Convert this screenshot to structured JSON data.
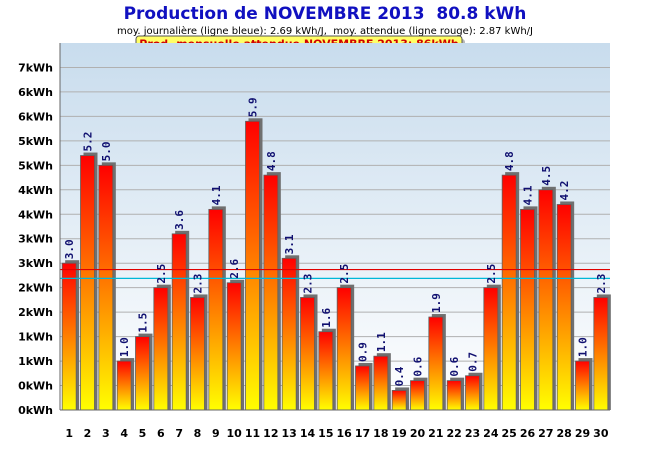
{
  "chart_data": {
    "type": "bar",
    "title": "Production de NOVEMBRE 2013  80.8 kWh",
    "subtitle": "moy. journalière (ligne bleue): 2.69 kWh/J,  moy. attendue (ligne rouge): 2.87 kWh/J",
    "banner": "Prod. mensuelle attendue NOVEMBRE 2013: 86kWh",
    "categories": [
      "1",
      "2",
      "3",
      "4",
      "5",
      "6",
      "7",
      "8",
      "9",
      "10",
      "11",
      "12",
      "13",
      "14",
      "15",
      "16",
      "17",
      "18",
      "19",
      "20",
      "21",
      "22",
      "23",
      "24",
      "25",
      "26",
      "27",
      "28",
      "29",
      "30"
    ],
    "values": [
      3.0,
      5.2,
      5.0,
      1.0,
      1.5,
      2.5,
      3.6,
      2.3,
      4.1,
      2.6,
      5.9,
      4.8,
      3.1,
      2.3,
      1.6,
      2.5,
      0.9,
      1.1,
      0.4,
      0.6,
      1.9,
      0.6,
      0.7,
      2.5,
      4.8,
      4.1,
      4.5,
      4.2,
      1.0,
      2.3
    ],
    "value_labels": [
      "3.0",
      "5.2",
      "5.0",
      "1.0",
      "1.5",
      "2.5",
      "3.6",
      "2.3",
      "4.1",
      "2.6",
      "5.9",
      "4.8",
      "3.1",
      "2.3",
      "1.6",
      "2.5",
      "0.9",
      "1.1",
      "0.4",
      "0.6",
      "1.9",
      "0.6",
      "0.7",
      "2.5",
      "4.8",
      "4.1",
      "4.5",
      "4.2",
      "1.0",
      "2.3"
    ],
    "ytick_labels": [
      "0kWh",
      "0kWh",
      "1kWh",
      "1kWh",
      "2kWh",
      "2kWh",
      "3kWh",
      "3kWh",
      "4kWh",
      "4kWh",
      "5kWh",
      "5kWh",
      "6kWh",
      "6kWh",
      "7kWh"
    ],
    "ylim": [
      0,
      7.5
    ],
    "ytick_step": 0.5,
    "avg_daily": 2.69,
    "avg_expected": 2.87,
    "xlabel": "",
    "ylabel": "",
    "grid": true,
    "colors": {
      "title": "#1010c0",
      "bar_top": "#ff0000",
      "bar_bottom": "#ffff00",
      "avg_line": "#00b8d8",
      "expected_line": "#e00000",
      "banner_fill": "#ffff66",
      "banner_text": "#d00000",
      "plot_bg_top": "#c8dced",
      "plot_bg_bottom": "#ffffff"
    }
  }
}
